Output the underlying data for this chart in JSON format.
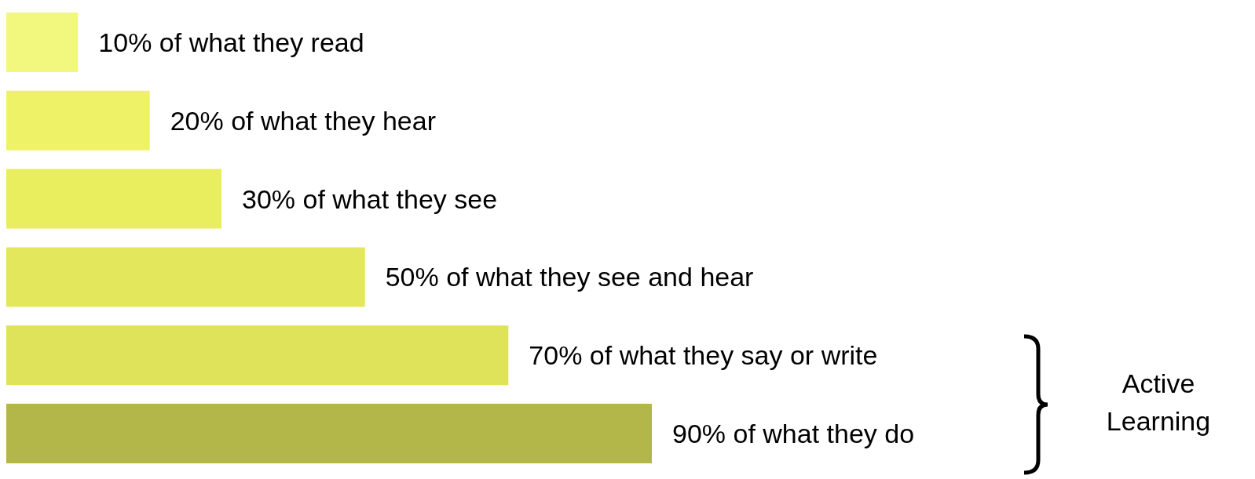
{
  "chart_data": {
    "type": "bar",
    "orientation": "horizontal",
    "categories": [
      null,
      null,
      null,
      null,
      null,
      null
    ],
    "values": [
      10,
      20,
      30,
      50,
      70,
      90
    ],
    "colors": [
      "#f2f77e",
      "#eef266",
      "#e8ee5e",
      "#e3e75c",
      "#dfe35a",
      "#b3b74a"
    ],
    "value_labels": [
      "10% of what they read",
      "20% of what they hear",
      "30% of what they see",
      "50% of what they see and hear",
      "70% of what they say or write",
      "90% of what they do"
    ],
    "annotations": [
      "Active Learning"
    ]
  }
}
